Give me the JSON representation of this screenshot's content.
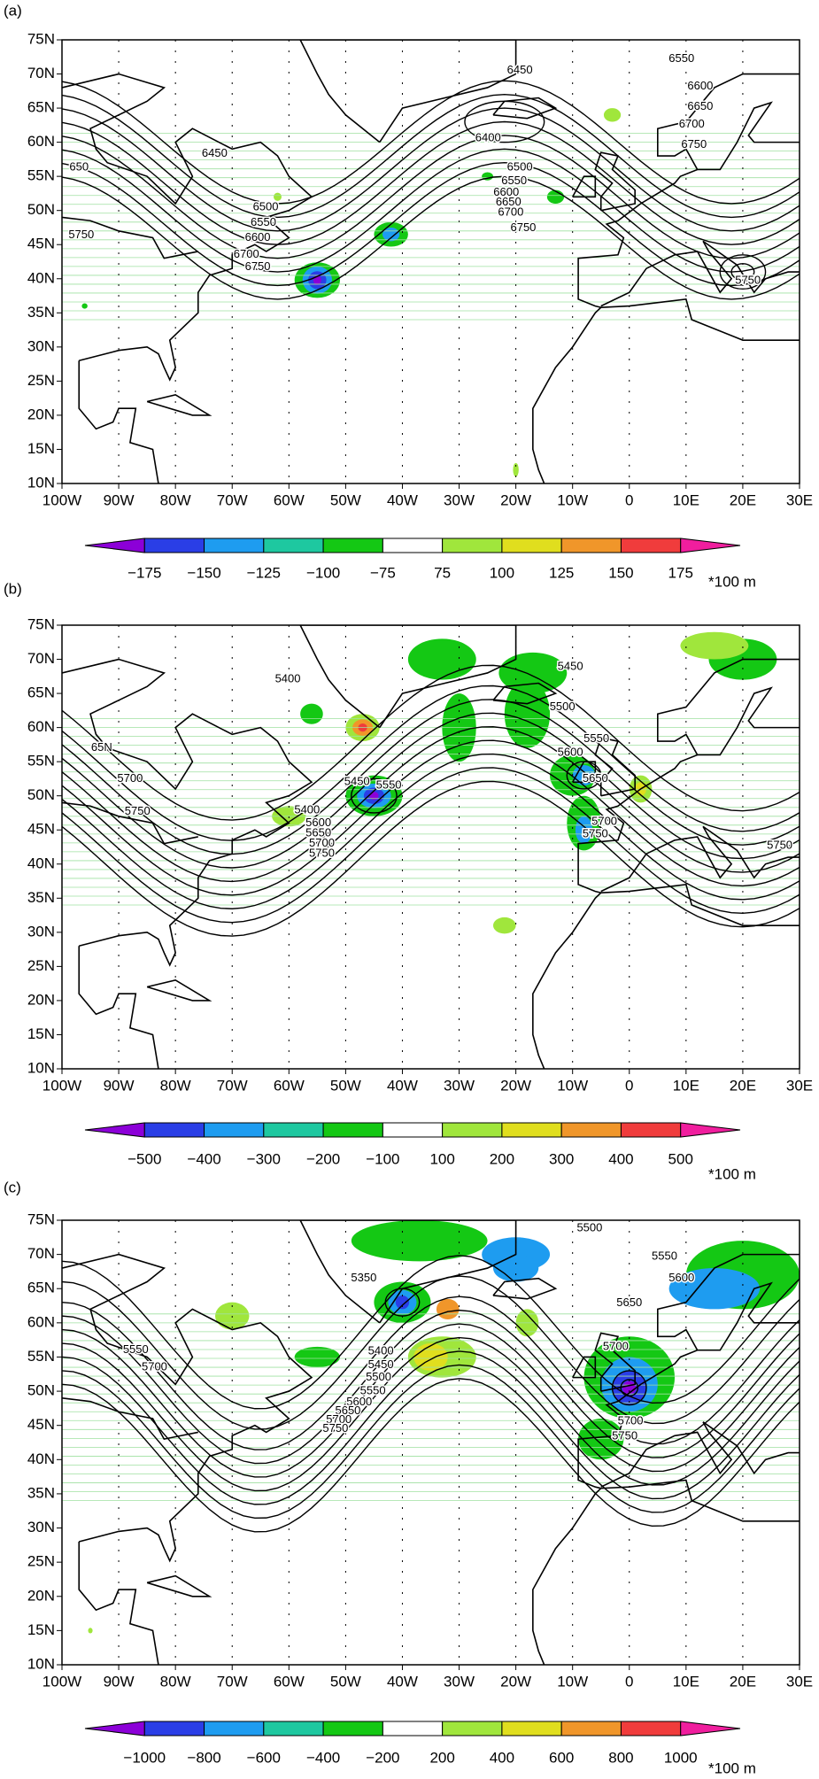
{
  "panels": [
    {
      "label": "(a)",
      "lat_ticks": [
        {
          "value": 75,
          "label": "75N"
        },
        {
          "value": 70,
          "label": "70N"
        },
        {
          "value": 65,
          "label": "65N"
        },
        {
          "value": 60,
          "label": "60N"
        },
        {
          "value": 55,
          "label": "55N"
        },
        {
          "value": 50,
          "label": "50N"
        },
        {
          "value": 45,
          "label": "45N"
        },
        {
          "value": 40,
          "label": "40N"
        },
        {
          "value": 35,
          "label": "35N"
        },
        {
          "value": 30,
          "label": "30N"
        },
        {
          "value": 25,
          "label": "25N"
        },
        {
          "value": 20,
          "label": "20N"
        },
        {
          "value": 15,
          "label": "15N"
        },
        {
          "value": 10,
          "label": "10N"
        }
      ],
      "lon_ticks": [
        {
          "value": -100,
          "label": "100W"
        },
        {
          "value": -90,
          "label": "90W"
        },
        {
          "value": -80,
          "label": "80W"
        },
        {
          "value": -70,
          "label": "70W"
        },
        {
          "value": -60,
          "label": "60W"
        },
        {
          "value": -50,
          "label": "50W"
        },
        {
          "value": -40,
          "label": "40W"
        },
        {
          "value": -30,
          "label": "30W"
        },
        {
          "value": -20,
          "label": "20W"
        },
        {
          "value": -10,
          "label": "10W"
        },
        0,
        {
          "value": 10,
          "label": "10E"
        },
        {
          "value": 20,
          "label": "20E"
        },
        {
          "value": 30,
          "label": "30E"
        }
      ],
      "contour_labels": [
        "6450",
        "6550",
        "6600",
        "6650",
        "6700",
        "6750",
        "6400",
        "650",
        "6450",
        "5750",
        "6500",
        "6550",
        "6600",
        "6700",
        "6750",
        "6500",
        "6550",
        "6600",
        "6650",
        "6700",
        "6750",
        "5750"
      ],
      "colorbar": {
        "levels": [
          {
            "value": -175,
            "label": "−175"
          },
          {
            "value": -150,
            "label": "−150"
          },
          {
            "value": -125,
            "label": "−125"
          },
          {
            "value": -100,
            "label": "−100"
          },
          {
            "value": -75,
            "label": "−75"
          },
          75,
          100,
          125,
          150,
          175
        ],
        "colors": [
          "#8c00d8",
          "#2a3ee6",
          "#1e9cf0",
          "#1ec8a0",
          "#14c814",
          "#ffffff",
          "#a0e63c",
          "#e0de1e",
          "#f0962a",
          "#f03c3c",
          "#f01e9e"
        ],
        "unit": "*100 m"
      }
    },
    {
      "label": "(b)",
      "lat_ticks": [
        {
          "value": 75,
          "label": "75N"
        },
        {
          "value": 70,
          "label": "70N"
        },
        {
          "value": 65,
          "label": "65N"
        },
        {
          "value": 60,
          "label": "60N"
        },
        {
          "value": 55,
          "label": "55N"
        },
        {
          "value": 50,
          "label": "50N"
        },
        {
          "value": 45,
          "label": "45N"
        },
        {
          "value": 40,
          "label": "40N"
        },
        {
          "value": 35,
          "label": "35N"
        },
        {
          "value": 30,
          "label": "30N"
        },
        {
          "value": 25,
          "label": "25N"
        },
        {
          "value": 20,
          "label": "20N"
        },
        {
          "value": 15,
          "label": "15N"
        },
        {
          "value": 10,
          "label": "10N"
        }
      ],
      "lon_ticks": [
        {
          "value": -100,
          "label": "100W"
        },
        {
          "value": -90,
          "label": "90W"
        },
        {
          "value": -80,
          "label": "80W"
        },
        {
          "value": -70,
          "label": "70W"
        },
        {
          "value": -60,
          "label": "60W"
        },
        {
          "value": -50,
          "label": "50W"
        },
        {
          "value": -40,
          "label": "40W"
        },
        {
          "value": -30,
          "label": "30W"
        },
        {
          "value": -20,
          "label": "20W"
        },
        {
          "value": -10,
          "label": "10W"
        },
        0,
        {
          "value": 10,
          "label": "10E"
        },
        {
          "value": 20,
          "label": "20E"
        },
        {
          "value": 30,
          "label": "30E"
        }
      ],
      "contour_labels": [
        "5400",
        "65N",
        "5700",
        "5750",
        "5400",
        "5600",
        "5650",
        "5700",
        "5750",
        "5450",
        "5550",
        "5450",
        "5500",
        "5550",
        "5600",
        "5650",
        "5700",
        "5750",
        "5750"
      ],
      "colorbar": {
        "levels": [
          {
            "value": -500,
            "label": "−500"
          },
          {
            "value": -400,
            "label": "−400"
          },
          {
            "value": -300,
            "label": "−300"
          },
          {
            "value": -200,
            "label": "−200"
          },
          {
            "value": -100,
            "label": "−100"
          },
          100,
          200,
          300,
          400,
          500
        ],
        "colors": [
          "#8c00d8",
          "#2a3ee6",
          "#1e9cf0",
          "#1ec8a0",
          "#14c814",
          "#ffffff",
          "#a0e63c",
          "#e0de1e",
          "#f0962a",
          "#f03c3c",
          "#f01e9e"
        ],
        "unit": "*100 m"
      }
    },
    {
      "label": "(c)",
      "lat_ticks": [
        {
          "value": 75,
          "label": "75N"
        },
        {
          "value": 70,
          "label": "70N"
        },
        {
          "value": 65,
          "label": "65N"
        },
        {
          "value": 60,
          "label": "60N"
        },
        {
          "value": 55,
          "label": "55N"
        },
        {
          "value": 50,
          "label": "50N"
        },
        {
          "value": 45,
          "label": "45N"
        },
        {
          "value": 40,
          "label": "40N"
        },
        {
          "value": 35,
          "label": "35N"
        },
        {
          "value": 30,
          "label": "30N"
        },
        {
          "value": 25,
          "label": "25N"
        },
        {
          "value": 20,
          "label": "20N"
        },
        {
          "value": 15,
          "label": "15N"
        },
        {
          "value": 10,
          "label": "10N"
        }
      ],
      "lon_ticks": [
        {
          "value": -100,
          "label": "100W"
        },
        {
          "value": -90,
          "label": "90W"
        },
        {
          "value": -80,
          "label": "80W"
        },
        {
          "value": -70,
          "label": "70W"
        },
        {
          "value": -60,
          "label": "60W"
        },
        {
          "value": -50,
          "label": "50W"
        },
        {
          "value": -40,
          "label": "40W"
        },
        {
          "value": -30,
          "label": "30W"
        },
        {
          "value": -20,
          "label": "20W"
        },
        {
          "value": -10,
          "label": "10W"
        },
        0,
        {
          "value": 10,
          "label": "10E"
        },
        {
          "value": 20,
          "label": "20E"
        },
        {
          "value": 30,
          "label": "30E"
        }
      ],
      "contour_labels": [
        "5500",
        "5550",
        "5600",
        "5650",
        "5350",
        "5550",
        "5700",
        "5400",
        "5450",
        "5500",
        "5550",
        "5600",
        "5650",
        "5700",
        "5750",
        "5700",
        "5700",
        "5750"
      ],
      "colorbar": {
        "levels": [
          {
            "value": -1000,
            "label": "−1000"
          },
          {
            "value": -800,
            "label": "−800"
          },
          {
            "value": -600,
            "label": "−600"
          },
          {
            "value": -400,
            "label": "−400"
          },
          {
            "value": -200,
            "label": "−200"
          },
          200,
          400,
          600,
          800,
          1000
        ],
        "colors": [
          "#8c00d8",
          "#2a3ee6",
          "#1e9cf0",
          "#1ec8a0",
          "#14c814",
          "#ffffff",
          "#a0e63c",
          "#e0de1e",
          "#f0962a",
          "#f03c3c",
          "#f01e9e"
        ],
        "unit": "*100 m"
      }
    }
  ]
}
